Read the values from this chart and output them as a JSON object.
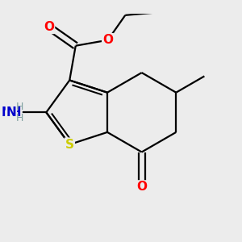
{
  "background_color": "#ececec",
  "atom_colors": {
    "C": "#000000",
    "O": "#ff0000",
    "N": "#0000cc",
    "S": "#cccc00",
    "H": "#7fa0a0"
  },
  "bond_color": "#000000",
  "bond_width": 1.6,
  "figsize": [
    3.0,
    3.0
  ],
  "dpi": 100,
  "xlim": [
    -2.2,
    2.5
  ],
  "ylim": [
    -2.4,
    2.2
  ]
}
